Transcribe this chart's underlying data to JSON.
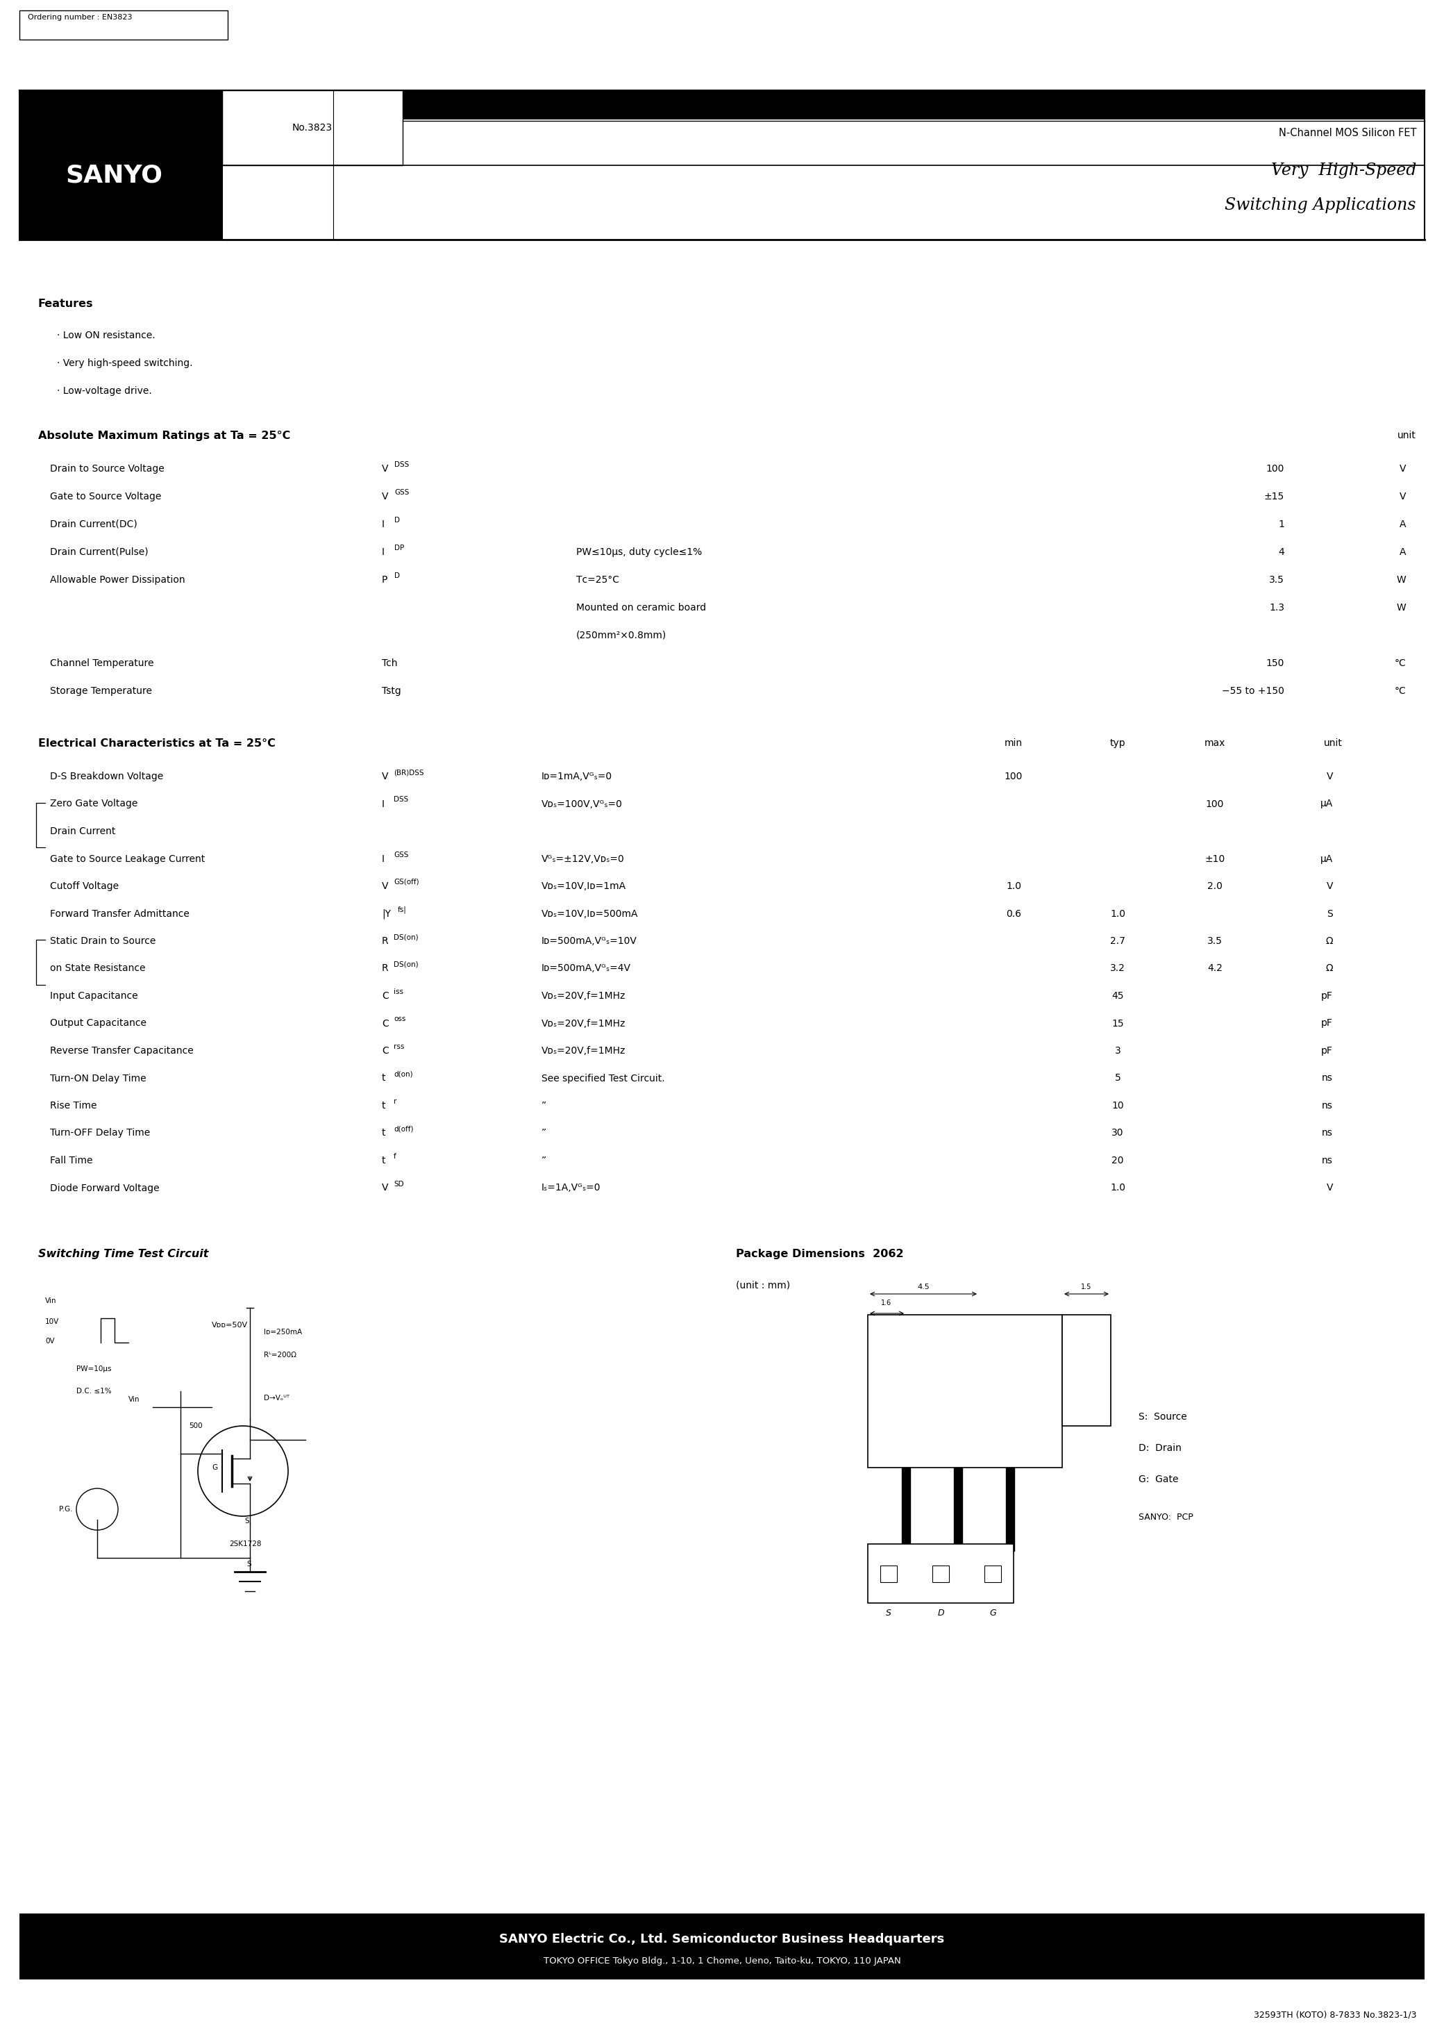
{
  "page_width": 20.8,
  "page_height": 29.17,
  "bg_color": "#ffffff",
  "ordering_number": "Ordering number : EN3823",
  "no_number": "No.3823",
  "part_number": "2SK1728",
  "subtitle1": "N-Channel MOS Silicon FET",
  "subtitle2": "Very  High-Speed",
  "subtitle3": "Switching Applications",
  "features_title": "Features",
  "features": [
    "· Low ON resistance.",
    "· Very high-speed switching.",
    "· Low-voltage drive."
  ],
  "abs_max_title": "Absolute Maximum Ratings at Ta = 25°C",
  "abs_max_unit_header": "unit",
  "elec_title": "Electrical Characteristics at Ta = 25°C",
  "elec_headers": [
    "min",
    "typ",
    "max",
    "unit"
  ],
  "footer_company": "SANYO Electric Co., Ltd. Semiconductor Business Headquarters",
  "footer_office": "TOKYO OFFICE Tokyo Bldg., 1-10, 1 Chome, Ueno, Taito-ku, TOKYO, 110 JAPAN",
  "footer_code": "32593TH (KOTO) 8-7833 No.3823-1/3",
  "sw_title": "Switching Time Test Circuit",
  "pkg_title": "Package Dimensions  2062",
  "pkg_unit": "(unit : mm)"
}
